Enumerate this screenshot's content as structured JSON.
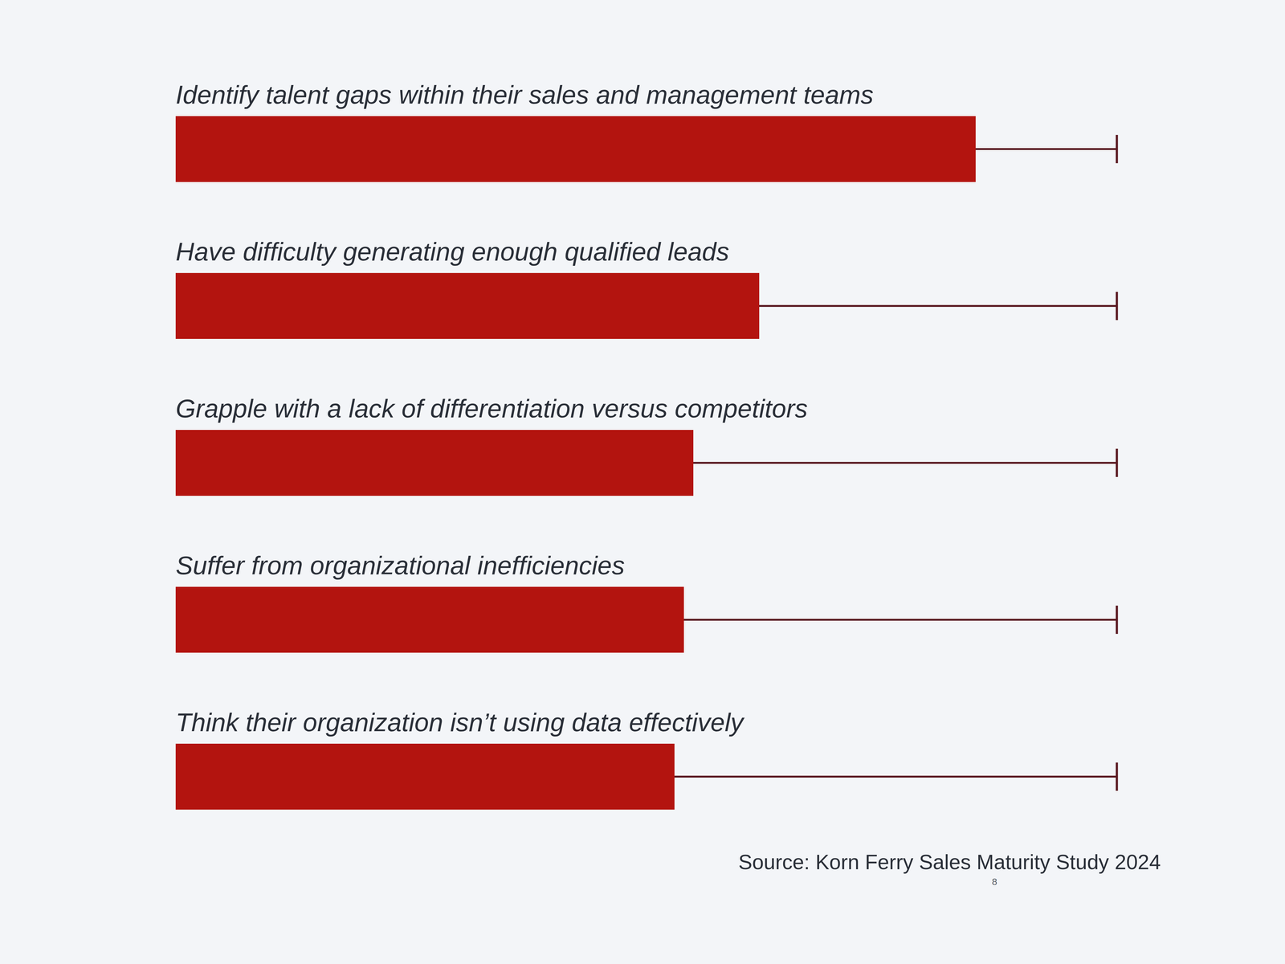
{
  "chart_data": {
    "type": "bar",
    "orientation": "horizontal",
    "categories": [
      "Identify talent gaps within their sales and management teams",
      "Have difficulty generating enough qualified leads",
      "Grapple with a lack of differentiation versus competitors",
      "Suffer from organizational inefficiencies",
      "Think their organization isn’t using data effectively"
    ],
    "values": [
      85,
      62,
      55,
      54,
      53
    ],
    "color": "#b3140f",
    "xlim": [
      0,
      100
    ],
    "tick_labels": false,
    "source": "Source: Korn Ferry Sales Maturity Study 2024",
    "page_number": "8"
  }
}
